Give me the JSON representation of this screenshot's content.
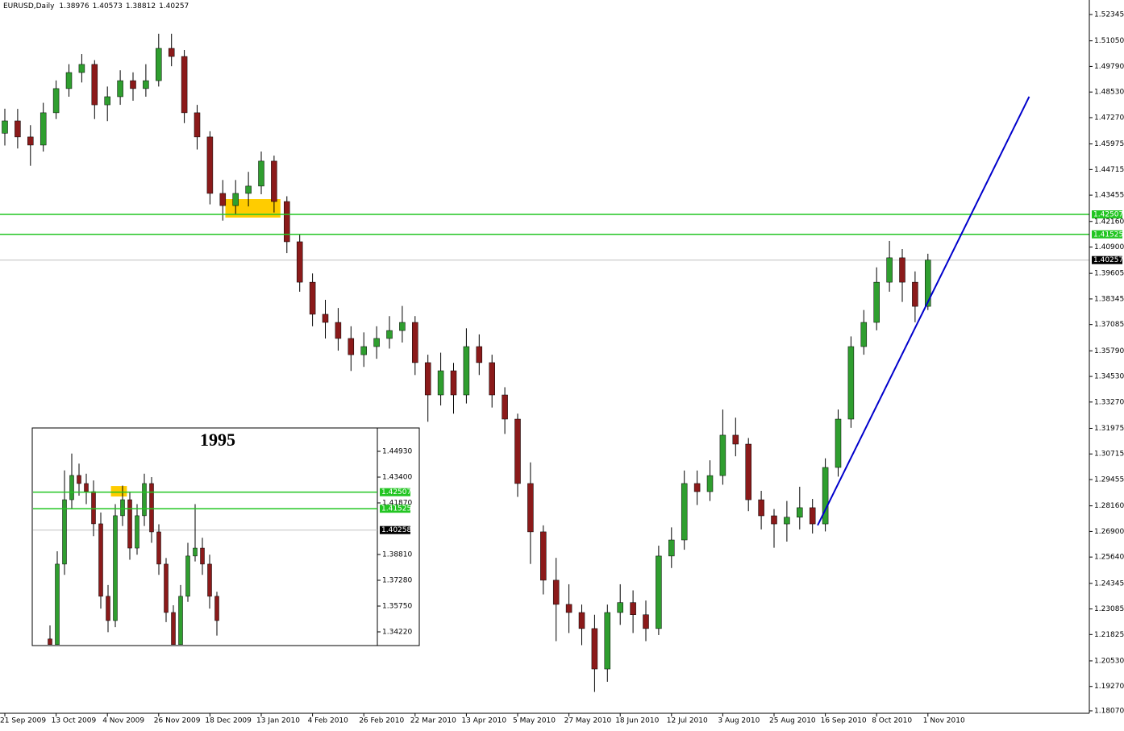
{
  "chart_data": [
    {
      "type": "candlestick",
      "title": "EURUSD,Daily",
      "header_values": [
        1.38976,
        1.40573,
        1.38812,
        1.40257
      ],
      "categories": [
        "21 Sep 2009",
        null,
        null,
        null,
        "13 Oct 2009",
        null,
        null,
        null,
        "4 Nov 2009",
        null,
        null,
        null,
        "26 Nov 2009",
        null,
        null,
        null,
        "18 Dec 2009",
        null,
        null,
        null,
        "13 Jan 2010",
        null,
        null,
        null,
        "4 Feb 2010",
        null,
        null,
        null,
        "26 Feb 2010",
        null,
        null,
        null,
        "22 Mar 2010",
        null,
        null,
        null,
        "13 Apr 2010",
        null,
        null,
        null,
        "5 May 2010",
        null,
        null,
        null,
        "27 May 2010",
        null,
        null,
        null,
        "18 Jun 2010",
        null,
        null,
        null,
        "12 Jul 2010",
        null,
        null,
        null,
        "3 Aug 2010",
        null,
        null,
        null,
        "25 Aug 2010",
        null,
        null,
        null,
        "16 Sep 2010",
        null,
        null,
        null,
        "8 Oct 2010",
        null,
        null,
        null,
        "1 Nov 2010"
      ],
      "open": [
        1.465,
        1.4711,
        1.4632,
        1.4592,
        1.4751,
        1.487,
        1.4949,
        1.4989,
        1.479,
        1.483,
        1.4909,
        1.487,
        1.4909,
        1.5068,
        1.5028,
        1.4751,
        1.4632,
        1.4354,
        1.4294,
        1.4354,
        1.439,
        1.4513,
        1.4314,
        1.4116,
        1.3917,
        1.3759,
        1.3719,
        1.364,
        1.356,
        1.36,
        1.364,
        1.3679,
        1.3719,
        1.3521,
        1.3362,
        1.3481,
        1.3362,
        1.36,
        1.3521,
        1.3362,
        1.3243,
        1.2926,
        1.2688,
        1.245,
        1.2331,
        1.2291,
        1.2212,
        1.2013,
        1.2291,
        1.234,
        1.228,
        1.2212,
        1.2569,
        1.2648,
        1.2926,
        1.2886,
        1.2965,
        1.3164,
        1.312,
        1.2846,
        1.2767,
        1.2727,
        1.276,
        1.2807,
        1.2727,
        1.3005,
        1.3243,
        1.36,
        1.3719,
        1.3917,
        1.4037,
        1.3917,
        1.3798
      ],
      "high": [
        1.4771,
        1.477,
        1.469,
        1.48,
        1.491,
        1.499,
        1.504,
        1.501,
        1.488,
        1.496,
        1.495,
        1.499,
        1.514,
        1.514,
        1.506,
        1.479,
        1.466,
        1.442,
        1.442,
        1.446,
        1.456,
        1.454,
        1.434,
        1.415,
        1.396,
        1.383,
        1.379,
        1.37,
        1.367,
        1.37,
        1.375,
        1.38,
        1.375,
        1.356,
        1.357,
        1.352,
        1.369,
        1.366,
        1.356,
        1.34,
        1.327,
        1.303,
        1.272,
        1.256,
        1.243,
        1.233,
        1.228,
        1.233,
        1.243,
        1.24,
        1.235,
        1.262,
        1.271,
        1.299,
        1.299,
        1.304,
        1.329,
        1.325,
        1.315,
        1.289,
        1.28,
        1.284,
        1.291,
        1.285,
        1.305,
        1.329,
        1.365,
        1.378,
        1.399,
        1.412,
        1.408,
        1.397,
        1.4057
      ],
      "low": [
        1.459,
        1.4575,
        1.449,
        1.456,
        1.472,
        1.483,
        1.49,
        1.472,
        1.471,
        1.479,
        1.481,
        1.483,
        1.488,
        1.498,
        1.47,
        1.457,
        1.43,
        1.422,
        1.425,
        1.429,
        1.435,
        1.426,
        1.406,
        1.387,
        1.37,
        1.364,
        1.358,
        1.348,
        1.35,
        1.354,
        1.359,
        1.362,
        1.346,
        1.323,
        1.331,
        1.327,
        1.332,
        1.346,
        1.33,
        1.317,
        1.286,
        1.253,
        1.238,
        1.215,
        1.219,
        1.213,
        1.19,
        1.195,
        1.223,
        1.219,
        1.215,
        1.218,
        1.251,
        1.26,
        1.282,
        1.284,
        1.292,
        1.306,
        1.279,
        1.27,
        1.261,
        1.264,
        1.27,
        1.268,
        1.269,
        1.296,
        1.32,
        1.356,
        1.368,
        1.387,
        1.382,
        1.372,
        1.378
      ],
      "close": [
        1.4711,
        1.4632,
        1.4592,
        1.4751,
        1.487,
        1.4949,
        1.4989,
        1.479,
        1.483,
        1.4909,
        1.487,
        1.4909,
        1.5068,
        1.5028,
        1.4751,
        1.4632,
        1.4354,
        1.4294,
        1.4354,
        1.439,
        1.4513,
        1.4314,
        1.4116,
        1.3917,
        1.3759,
        1.3719,
        1.364,
        1.356,
        1.36,
        1.364,
        1.3679,
        1.3719,
        1.3521,
        1.3362,
        1.3481,
        1.3362,
        1.36,
        1.3521,
        1.3362,
        1.3243,
        1.2926,
        1.2688,
        1.245,
        1.2331,
        1.2291,
        1.2212,
        1.2013,
        1.2291,
        1.234,
        1.228,
        1.2212,
        1.2569,
        1.2648,
        1.2926,
        1.2886,
        1.2965,
        1.3164,
        1.312,
        1.2846,
        1.2767,
        1.2727,
        1.276,
        1.2807,
        1.2727,
        1.3005,
        1.3243,
        1.36,
        1.3719,
        1.3917,
        1.4037,
        1.3917,
        1.3798,
        1.4026
      ],
      "up_color": "#2f9e2f",
      "down_color": "#8b1a1a",
      "ylim": [
        1.1795,
        1.5306
      ],
      "yticks": [
        1.52345,
        {
          "value": 1.5105,
          "label": "1.51050"
        },
        {
          "value": 1.4979,
          "label": "1.49790"
        },
        {
          "value": 1.4853,
          "label": "1.48530"
        },
        {
          "value": 1.4727,
          "label": "1.47270"
        },
        1.45975,
        1.44715,
        1.43455,
        {
          "value": 1.4216,
          "label": "1.42160"
        },
        {
          "value": 1.409,
          "label": "1.40900"
        },
        1.39605,
        1.38345,
        1.37085,
        {
          "value": 1.3579,
          "label": "1.35790"
        },
        {
          "value": 1.3453,
          "label": "1.34530"
        },
        {
          "value": 1.3327,
          "label": "1.33270"
        },
        1.31975,
        1.30715,
        1.29455,
        {
          "value": 1.2816,
          "label": "1.28160"
        },
        {
          "value": 1.269,
          "label": "1.26900"
        },
        {
          "value": 1.2564,
          "label": "1.25640"
        },
        1.24345,
        1.23085,
        1.21825,
        {
          "value": 1.2053,
          "label": "1.20530"
        },
        {
          "value": 1.1927,
          "label": "1.19270"
        },
        {
          "value": 1.1807,
          "label": "1.18070"
        }
      ],
      "levels": [
        1.42507,
        1.41525
      ],
      "level_color": "#22c522",
      "last_price": 1.40257,
      "highlight": {
        "color": "#ffcc00",
        "x": [
          17.2,
          21.5
        ],
        "y": [
          1.4235,
          1.4326
        ]
      },
      "trendline": {
        "color": "#0000cc",
        "x": [
          63.4,
          79.9
        ],
        "y": [
          1.272,
          1.483
        ]
      }
    },
    {
      "type": "candlestick",
      "title": "1995",
      "open": [
        1.338,
        1.3346,
        1.3824,
        1.4206,
        1.435,
        1.4302,
        1.4254,
        1.4063,
        1.3633,
        1.3489,
        1.4111,
        1.4206,
        1.3919,
        1.4111,
        1.4302,
        1.4015,
        1.3824,
        1.3537,
        1.3346,
        1.3633,
        1.3872,
        1.3919,
        1.3824,
        1.3633
      ],
      "high": [
        1.346,
        1.39,
        1.438,
        1.448,
        1.442,
        1.436,
        1.432,
        1.413,
        1.37,
        1.418,
        1.429,
        1.425,
        1.418,
        1.436,
        1.434,
        1.406,
        1.386,
        1.358,
        1.37,
        1.395,
        1.418,
        1.398,
        1.388,
        1.366
      ],
      "low": [
        1.33,
        1.33,
        1.376,
        1.415,
        1.423,
        1.418,
        1.399,
        1.356,
        1.342,
        1.345,
        1.405,
        1.385,
        1.388,
        1.405,
        1.395,
        1.376,
        1.348,
        1.33,
        1.33,
        1.36,
        1.384,
        1.376,
        1.356,
        1.34
      ],
      "close": [
        1.3346,
        1.3824,
        1.4206,
        1.435,
        1.4302,
        1.4254,
        1.4063,
        1.3633,
        1.3489,
        1.4111,
        1.4206,
        1.3919,
        1.4111,
        1.4302,
        1.4015,
        1.3824,
        1.3537,
        1.3346,
        1.3633,
        1.3872,
        1.3919,
        1.3824,
        1.3633,
        1.3489
      ],
      "up_color": "#2f9e2f",
      "down_color": "#8b1a1a",
      "ylim": [
        1.33407,
        1.46316
      ],
      "yticks": [
        {
          "value": 1.4493,
          "label": "1.44930"
        },
        {
          "value": 1.434,
          "label": "1.43400"
        },
        {
          "value": 1.4187,
          "label": "1.41870"
        },
        {
          "value": 1.3881,
          "label": "1.38810"
        },
        {
          "value": 1.3728,
          "label": "1.37280"
        },
        {
          "value": 1.3575,
          "label": "1.35750"
        },
        {
          "value": 1.3422,
          "label": "1.34220"
        }
      ],
      "levels": [
        1.42507,
        1.41525
      ],
      "level_color": "#22c522",
      "last_price": 1.40258,
      "highlight": {
        "color": "#ffcc00",
        "x": [
          8.4,
          10.6
        ],
        "y": [
          1.4225,
          1.4287
        ]
      }
    }
  ]
}
